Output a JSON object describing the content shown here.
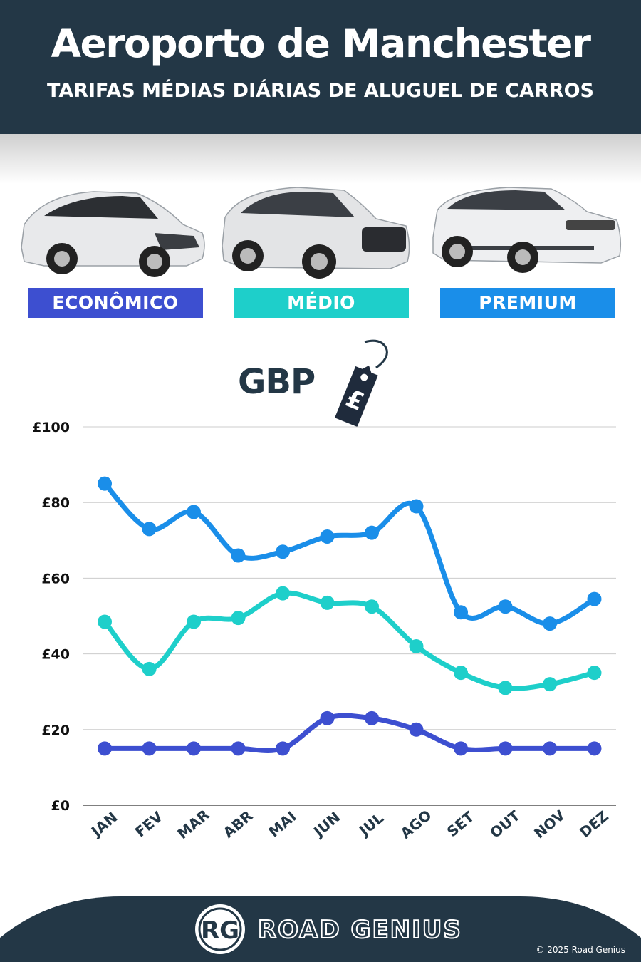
{
  "header": {
    "title": "Aeroporto de Manchester",
    "subtitle": "TARIFAS MÉDIAS DIÁRIAS DE ALUGUEL DE CARROS"
  },
  "categories": [
    {
      "label": "ECONÔMICO",
      "color": "#3d4fd0"
    },
    {
      "label": "MÉDIO",
      "color": "#1ecfca"
    },
    {
      "label": "PREMIUM",
      "color": "#1a8ee9"
    }
  ],
  "currency": {
    "label": "GBP",
    "icon": "price-tag-icon",
    "symbol": "£"
  },
  "chart_data": {
    "type": "line",
    "categories": [
      "JAN",
      "FEV",
      "MAR",
      "ABR",
      "MAI",
      "JUN",
      "JUL",
      "AGO",
      "SET",
      "OUT",
      "NOV",
      "DEZ"
    ],
    "series": [
      {
        "name": "PREMIUM",
        "color": "#1a8ee9",
        "values": [
          85,
          73,
          77.5,
          66,
          67,
          71,
          72,
          79,
          51,
          52.5,
          48,
          54.5
        ]
      },
      {
        "name": "MÉDIO",
        "color": "#1ecfca",
        "values": [
          48.5,
          36,
          48.5,
          49.5,
          56,
          53.5,
          52.5,
          42,
          35,
          31,
          32,
          35
        ]
      },
      {
        "name": "ECONÔMICO",
        "color": "#3d4fd0",
        "values": [
          15,
          15,
          15,
          15,
          15,
          23,
          23,
          20,
          15,
          15,
          15,
          15
        ]
      }
    ],
    "yticks": [
      "£0",
      "£20",
      "£40",
      "£60",
      "£80",
      "£100"
    ],
    "ylim": [
      0,
      100
    ],
    "grid": true,
    "xlabel": "",
    "ylabel": ""
  },
  "footer": {
    "logo_initials": "RG",
    "brand": "ROAD GENIUS",
    "copyright": "© 2025 Road Genius"
  }
}
